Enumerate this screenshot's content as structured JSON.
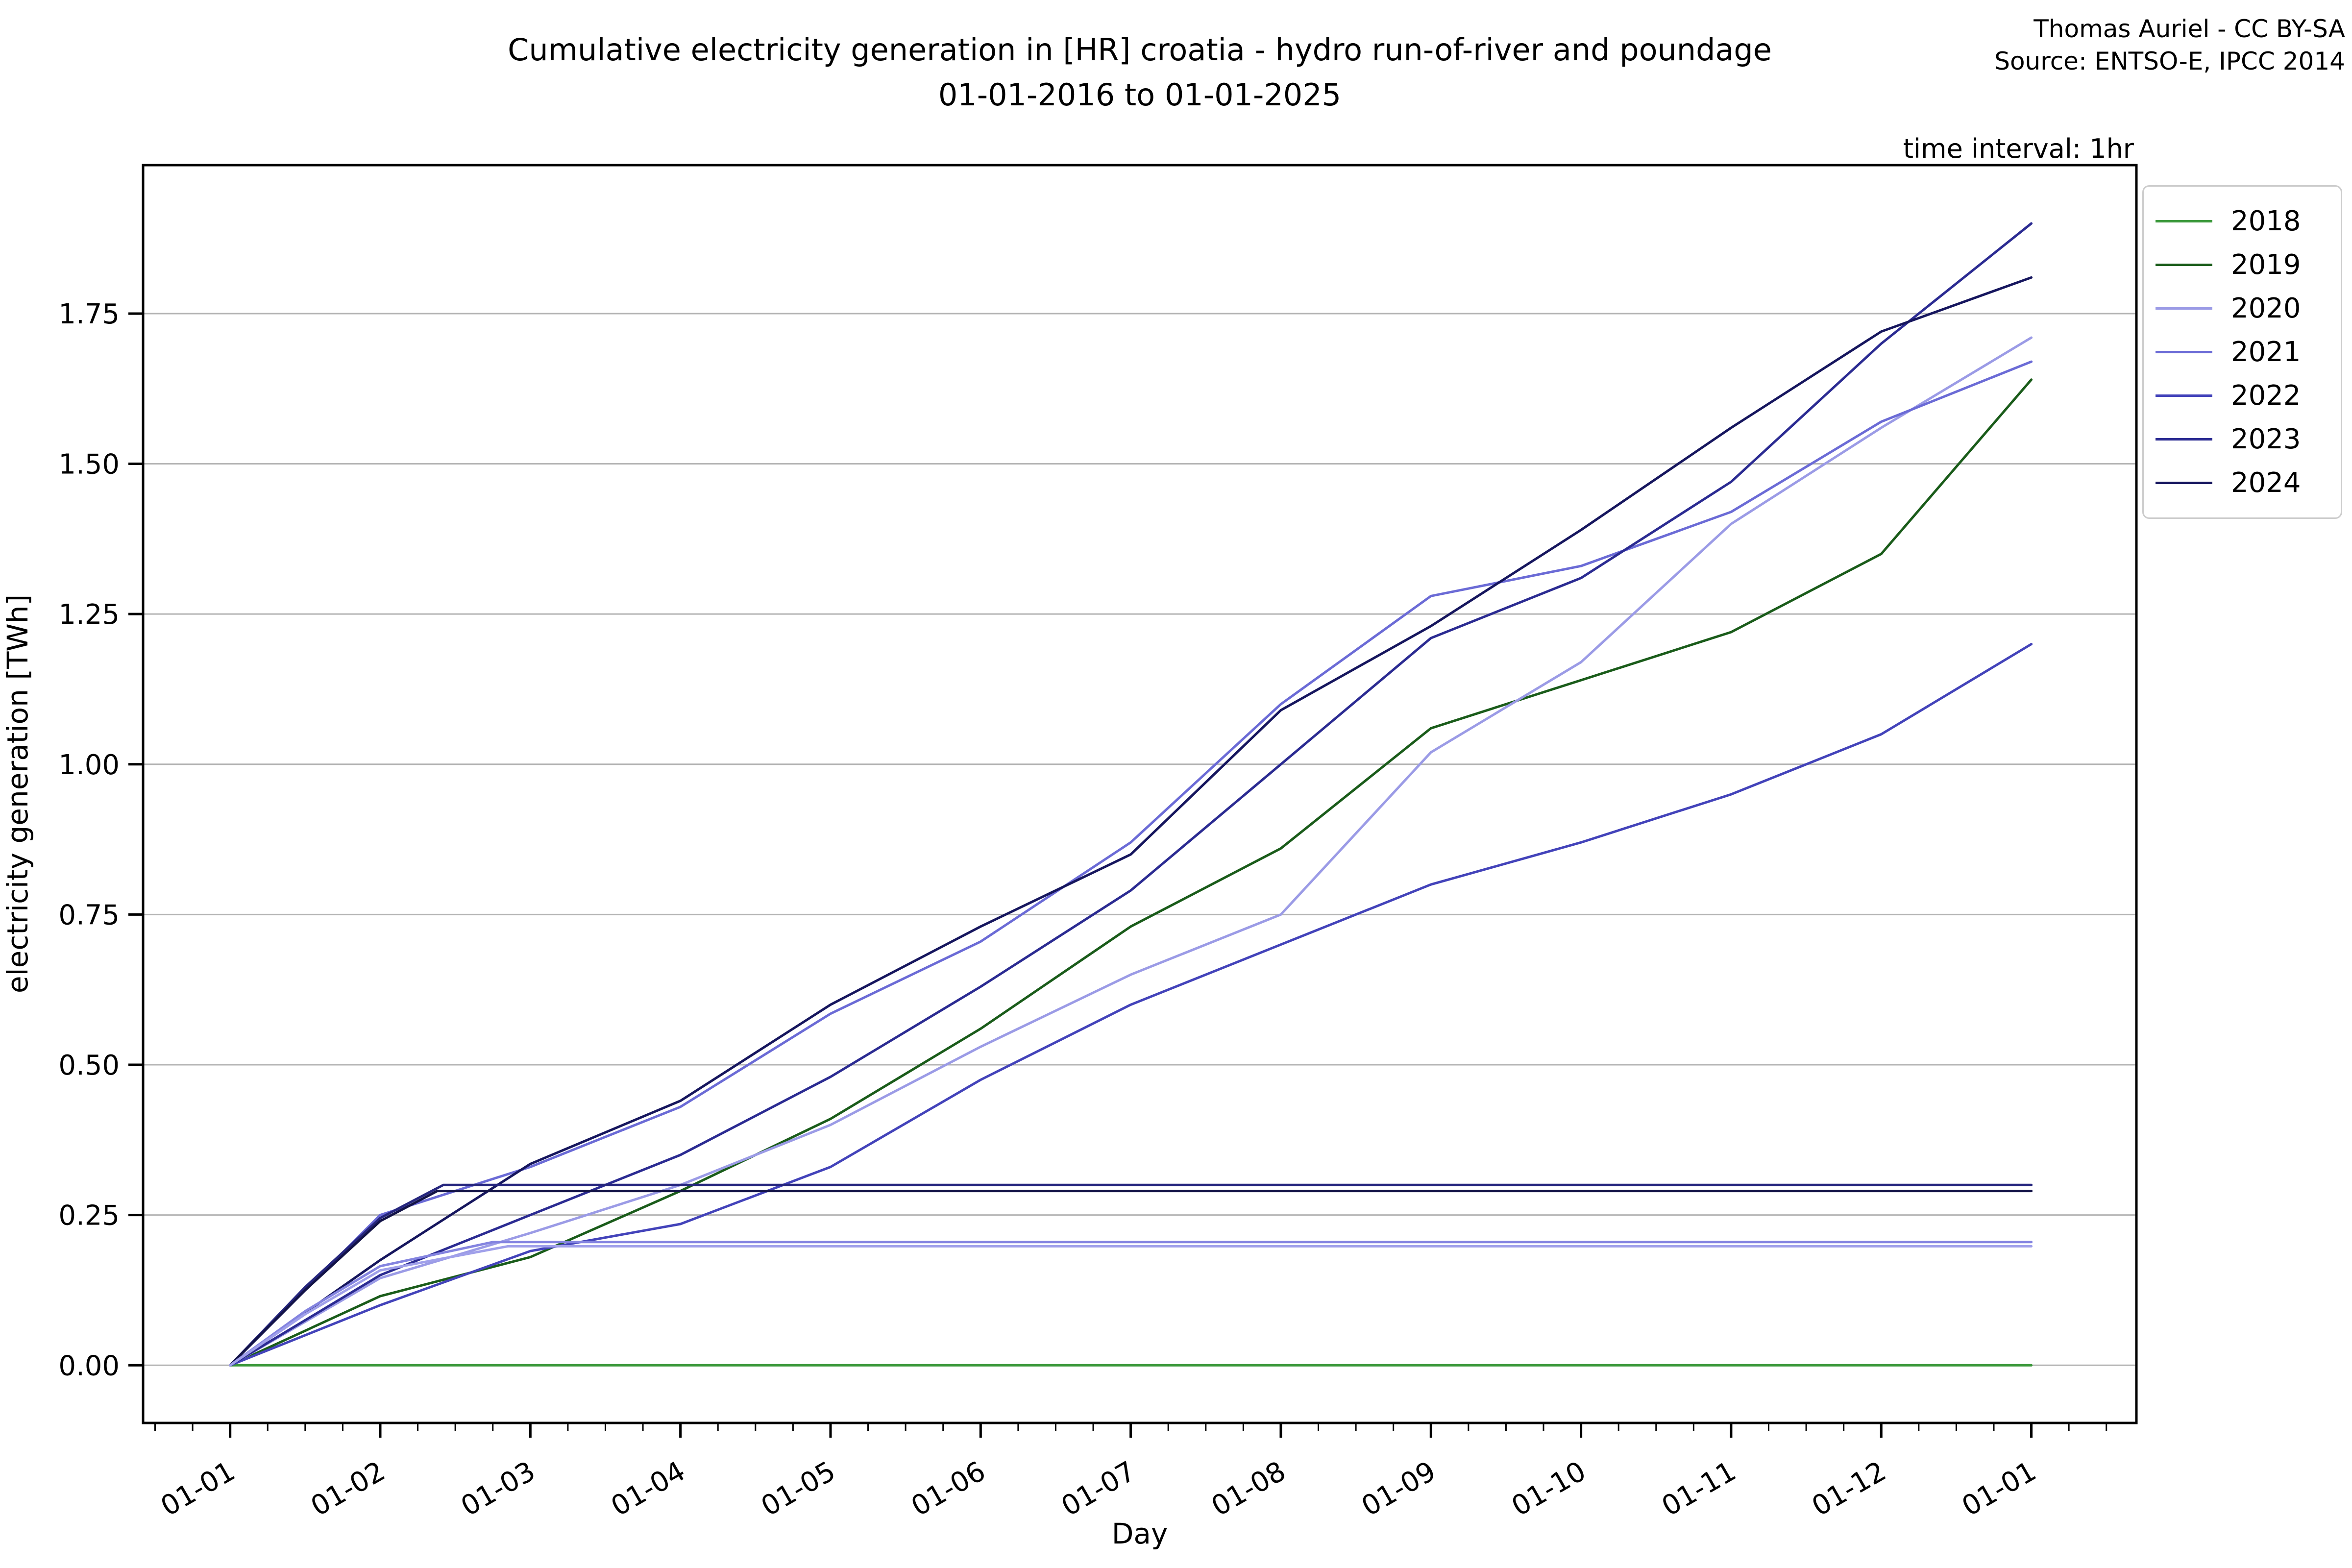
{
  "header": {
    "title_line1": "Cumulative electricity generation in [HR] croatia - hydro run-of-river and poundage",
    "title_line2": "01-01-2016 to 01-01-2025",
    "credit_line1": "Thomas Auriel - CC BY-SA",
    "credit_line2": "Source: ENTSO-E, IPCC 2014",
    "time_interval_note": "time interval: 1hr"
  },
  "chart_data": {
    "type": "line",
    "title": "Cumulative electricity generation in [HR] croatia - hydro run-of-river and poundage",
    "subtitle": "01-01-2016 to 01-01-2025",
    "xlabel": "Day",
    "ylabel": "electricity generation [TWh]",
    "x_tick_labels": [
      "01-01",
      "01-02",
      "01-03",
      "01-04",
      "01-05",
      "01-06",
      "01-07",
      "01-08",
      "01-09",
      "01-10",
      "01-11",
      "01-12",
      "01-01"
    ],
    "y_tick_labels": [
      "0.00",
      "0.25",
      "0.50",
      "0.75",
      "1.00",
      "1.25",
      "1.50",
      "1.75"
    ],
    "y_tick_values": [
      0.0,
      0.25,
      0.5,
      0.75,
      1.0,
      1.25,
      1.5,
      1.75
    ],
    "xlim_months": [
      -0.58,
      12.7
    ],
    "ylim": [
      -0.096,
      1.997
    ],
    "grid": "horizontal",
    "grid_color": "#b4b4b4",
    "spine_color": "#000000",
    "legend_position": "upper right",
    "legend_entries": [
      "2018",
      "2019",
      "2020",
      "2021",
      "2022",
      "2023",
      "2024"
    ],
    "series": [
      {
        "label": "2018",
        "in_legend": true,
        "color": "#3c993c",
        "points": [
          [
            0,
            0
          ],
          [
            12,
            0
          ]
        ]
      },
      {
        "label": "2019",
        "in_legend": true,
        "color": "#1a5c1a",
        "points": [
          [
            0,
            0
          ],
          [
            1,
            0.115
          ],
          [
            2,
            0.18
          ],
          [
            3,
            0.29
          ],
          [
            4,
            0.41
          ],
          [
            5,
            0.56
          ],
          [
            6,
            0.73
          ],
          [
            7,
            0.86
          ],
          [
            8,
            1.06
          ],
          [
            9,
            1.14
          ],
          [
            10,
            1.22
          ],
          [
            11,
            1.35
          ],
          [
            12,
            1.64
          ]
        ]
      },
      {
        "label": "2020",
        "in_legend": true,
        "color": "#9b9be6",
        "points": [
          [
            0,
            0
          ],
          [
            1,
            0.145
          ],
          [
            2,
            0.22
          ],
          [
            3,
            0.3
          ],
          [
            4,
            0.4
          ],
          [
            5,
            0.53
          ],
          [
            6,
            0.65
          ],
          [
            7,
            0.75
          ],
          [
            8,
            1.02
          ],
          [
            9,
            1.17
          ],
          [
            10,
            1.4
          ],
          [
            11,
            1.56
          ],
          [
            12,
            1.71
          ]
        ]
      },
      {
        "label": "2021",
        "in_legend": true,
        "color": "#6b6bd6",
        "points": [
          [
            0,
            0
          ],
          [
            1,
            0.25
          ],
          [
            2,
            0.33
          ],
          [
            3,
            0.43
          ],
          [
            4,
            0.585
          ],
          [
            5,
            0.705
          ],
          [
            6,
            0.87
          ],
          [
            7,
            1.1
          ],
          [
            8,
            1.28
          ],
          [
            9,
            1.33
          ],
          [
            10,
            1.42
          ],
          [
            11,
            1.57
          ],
          [
            12,
            1.67
          ]
        ]
      },
      {
        "label": "2022",
        "in_legend": true,
        "color": "#4343ba",
        "points": [
          [
            0,
            0
          ],
          [
            1,
            0.1
          ],
          [
            2,
            0.19
          ],
          [
            3,
            0.235
          ],
          [
            4,
            0.33
          ],
          [
            5,
            0.475
          ],
          [
            6,
            0.6
          ],
          [
            7,
            0.7
          ],
          [
            8,
            0.8
          ],
          [
            9,
            0.87
          ],
          [
            10,
            0.95
          ],
          [
            11,
            1.05
          ],
          [
            12,
            1.2
          ]
        ]
      },
      {
        "label": "2023",
        "in_legend": true,
        "color": "#2b2b92",
        "points": [
          [
            0,
            0
          ],
          [
            1,
            0.15
          ],
          [
            2,
            0.25
          ],
          [
            3,
            0.35
          ],
          [
            4,
            0.48
          ],
          [
            5,
            0.63
          ],
          [
            6,
            0.79
          ],
          [
            7,
            1.0
          ],
          [
            8,
            1.21
          ],
          [
            9,
            1.31
          ],
          [
            10,
            1.47
          ],
          [
            11,
            1.7
          ],
          [
            12,
            1.9
          ]
        ]
      },
      {
        "label": "2024",
        "in_legend": true,
        "color": "#16165e",
        "points": [
          [
            0,
            0
          ],
          [
            1,
            0.175
          ],
          [
            2,
            0.335
          ],
          [
            3,
            0.44
          ],
          [
            4,
            0.6
          ],
          [
            5,
            0.73
          ],
          [
            6,
            0.85
          ],
          [
            7,
            1.09
          ],
          [
            8,
            1.23
          ],
          [
            9,
            1.39
          ],
          [
            10,
            1.56
          ],
          [
            11,
            1.72
          ],
          [
            12,
            1.81
          ]
        ]
      },
      {
        "label": "",
        "in_legend": false,
        "color": "#26267e",
        "points": [
          [
            0,
            0
          ],
          [
            0.5,
            0.13
          ],
          [
            1,
            0.245
          ],
          [
            1.42,
            0.3
          ],
          [
            12,
            0.3
          ]
        ]
      },
      {
        "label": "",
        "in_legend": false,
        "color": "#131347",
        "points": [
          [
            0,
            0
          ],
          [
            0.5,
            0.125
          ],
          [
            1,
            0.24
          ],
          [
            1.38,
            0.29
          ],
          [
            12,
            0.29
          ]
        ]
      },
      {
        "label": "",
        "in_legend": false,
        "color": "#8484e0",
        "points": [
          [
            0,
            0
          ],
          [
            0.5,
            0.09
          ],
          [
            1,
            0.165
          ],
          [
            1.75,
            0.205
          ],
          [
            12,
            0.205
          ]
        ]
      },
      {
        "label": "",
        "in_legend": false,
        "color": "#a0a0ea",
        "points": [
          [
            0,
            0
          ],
          [
            0.5,
            0.085
          ],
          [
            1,
            0.158
          ],
          [
            1.85,
            0.198
          ],
          [
            12,
            0.198
          ]
        ]
      }
    ]
  }
}
